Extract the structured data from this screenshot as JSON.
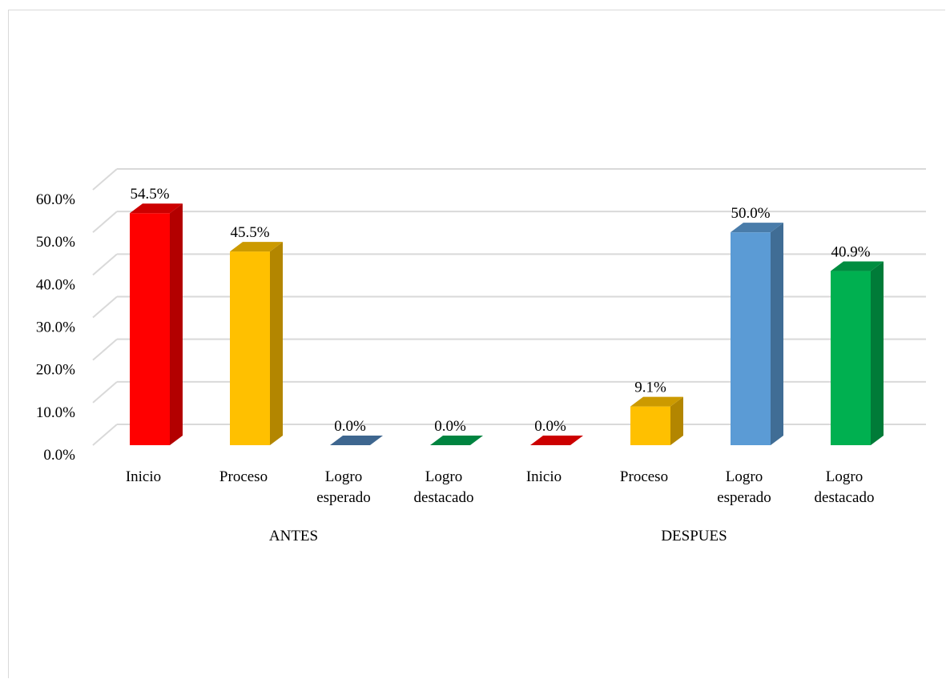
{
  "chart_data": {
    "type": "bar",
    "style": "3d-column",
    "title": "",
    "xlabel": "",
    "ylabel": "",
    "ylim": [
      0,
      60
    ],
    "y_ticks": [
      "0.0%",
      "10.0%",
      "20.0%",
      "30.0%",
      "40.0%",
      "50.0%",
      "60.0%"
    ],
    "grid": true,
    "legend": "none",
    "groups": [
      "ANTES",
      "DESPUES"
    ],
    "categories": [
      {
        "group": "ANTES",
        "label": [
          "Inicio"
        ]
      },
      {
        "group": "ANTES",
        "label": [
          "Proceso"
        ]
      },
      {
        "group": "ANTES",
        "label": [
          "Logro",
          "esperado"
        ]
      },
      {
        "group": "ANTES",
        "label": [
          "Logro",
          "destacado"
        ]
      },
      {
        "group": "DESPUES",
        "label": [
          "Inicio"
        ]
      },
      {
        "group": "DESPUES",
        "label": [
          "Proceso"
        ]
      },
      {
        "group": "DESPUES",
        "label": [
          "Logro",
          "esperado"
        ]
      },
      {
        "group": "DESPUES",
        "label": [
          "Logro",
          "destacado"
        ]
      }
    ],
    "values": [
      54.5,
      45.5,
      0.0,
      0.0,
      0.0,
      9.1,
      50.0,
      40.9
    ],
    "data_labels": [
      "54.5%",
      "45.5%",
      "0.0%",
      "0.0%",
      "0.0%",
      "9.1%",
      "50.0%",
      "40.9%"
    ],
    "colors": [
      "#ff0000",
      "#ffc000",
      "#4e7fb3",
      "#00a550",
      "#ff0000",
      "#ffc000",
      "#5b9bd5",
      "#00b050"
    ]
  }
}
